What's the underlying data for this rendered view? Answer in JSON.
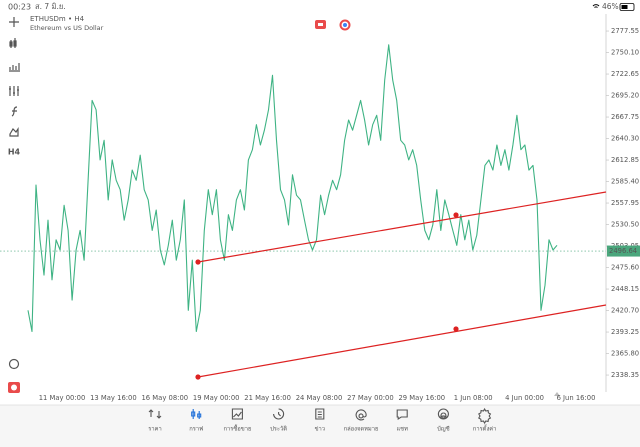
{
  "status_bar": {
    "time": "00:23",
    "date": "ส. 7 มิ.ย.",
    "battery": "46%"
  },
  "chart_data": {
    "type": "line",
    "title": "ETHUSDm • H4",
    "subtitle": "Ethereum vs US Dollar",
    "toolbar_timeframe": "H4",
    "x_labels": [
      "11 May 00:00",
      "13 May 16:00",
      "16 May 08:00",
      "19 May 00:00",
      "21 May 16:00",
      "24 May 08:00",
      "27 May 00:00",
      "29 May 16:00",
      "1 Jun 08:00",
      "4 Jun 00:00",
      "6 Jun 16:00"
    ],
    "series": [
      {
        "color": "#3fb384",
        "values": [
          2421,
          2394,
          2581,
          2511,
          2466,
          2536,
          2460,
          2511,
          2498,
          2555,
          2523,
          2434,
          2498,
          2523,
          2485,
          2587,
          2689,
          2677,
          2613,
          2638,
          2562,
          2613,
          2587,
          2575,
          2536,
          2562,
          2600,
          2587,
          2619,
          2575,
          2562,
          2523,
          2549,
          2498,
          2479,
          2504,
          2536,
          2485,
          2511,
          2562,
          2421,
          2485,
          2394,
          2421,
          2523,
          2575,
          2543,
          2575,
          2511,
          2485,
          2543,
          2523,
          2562,
          2575,
          2549,
          2613,
          2626,
          2658,
          2632,
          2651,
          2677,
          2721,
          2638,
          2575,
          2562,
          2530,
          2594,
          2568,
          2562,
          2536,
          2511,
          2498,
          2511,
          2568,
          2543,
          2568,
          2587,
          2575,
          2594,
          2638,
          2664,
          2651,
          2670,
          2689,
          2664,
          2632,
          2658,
          2670,
          2638,
          2715,
          2760,
          2715,
          2689,
          2638,
          2632,
          2613,
          2626,
          2606,
          2562,
          2523,
          2511,
          2530,
          2575,
          2523,
          2562,
          2543,
          2523,
          2504,
          2543,
          2511,
          2536,
          2498,
          2517,
          2562,
          2606,
          2613,
          2600,
          2632,
          2606,
          2626,
          2600,
          2632,
          2670,
          2626,
          2632,
          2600,
          2606,
          2562,
          2421,
          2453,
          2511,
          2498,
          2504
        ]
      }
    ],
    "current_price": 2496.64,
    "current_price_color": "#4aa67c",
    "ylim": [
      2316.7,
      2799.3
    ],
    "yticks": [
      2777.55,
      {
        "value": 2750.1,
        "label": "2750.10"
      },
      2722.65,
      {
        "value": 2695.2,
        "label": "2695.20"
      },
      2667.75,
      {
        "value": 2640.3,
        "label": "2640.30"
      },
      2612.85,
      {
        "value": 2585.4,
        "label": "2585.40"
      },
      2557.95,
      {
        "value": 2530.5,
        "label": "2530.50"
      },
      2503.05,
      {
        "value": 2475.6,
        "label": "2475.60"
      },
      2448.15,
      {
        "value": 2420.7,
        "label": "2420.70"
      },
      2393.25,
      {
        "value": 2365.8,
        "label": "2365.80"
      },
      2338.35
    ]
  },
  "nav": [
    "ราคา",
    "กราฟ",
    "การซื้อขาย",
    "ประวัติ",
    "ข่าว",
    "กล่องจดหมาย",
    "แชท",
    "บัญชี",
    "การตั้งค่า"
  ]
}
